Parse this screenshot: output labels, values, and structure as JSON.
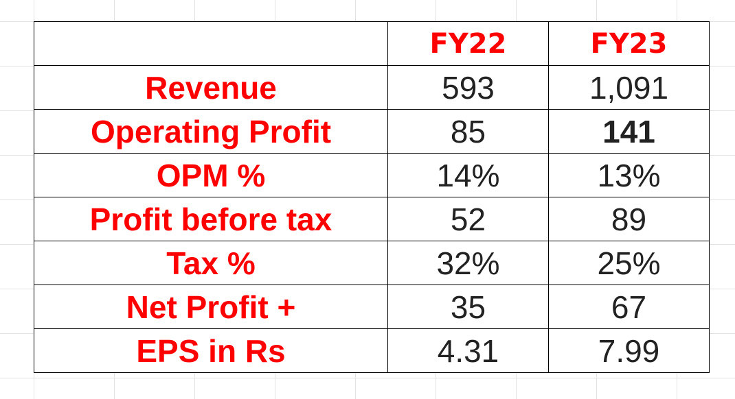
{
  "table": {
    "header": {
      "blank": "",
      "col1": "FY22",
      "col2": "FY23"
    },
    "rows": [
      {
        "label": "Revenue",
        "fy22": "593",
        "fy23": "1,091"
      },
      {
        "label": "Operating Profit",
        "fy22": "85",
        "fy23": "141"
      },
      {
        "label": "OPM %",
        "fy22": "14%",
        "fy23": "13%"
      },
      {
        "label": "Profit before tax",
        "fy22": "52",
        "fy23": "89"
      },
      {
        "label": "Tax %",
        "fy22": "32%",
        "fy23": "25%"
      },
      {
        "label": "Net Profit +",
        "fy22": "35",
        "fy23": "67"
      },
      {
        "label": "EPS in Rs",
        "fy22": "4.31",
        "fy23": "7.99"
      }
    ]
  },
  "colors": {
    "label": "#ff0000",
    "value": "#222222",
    "border": "#000000",
    "grid": "#e2e2e2"
  }
}
